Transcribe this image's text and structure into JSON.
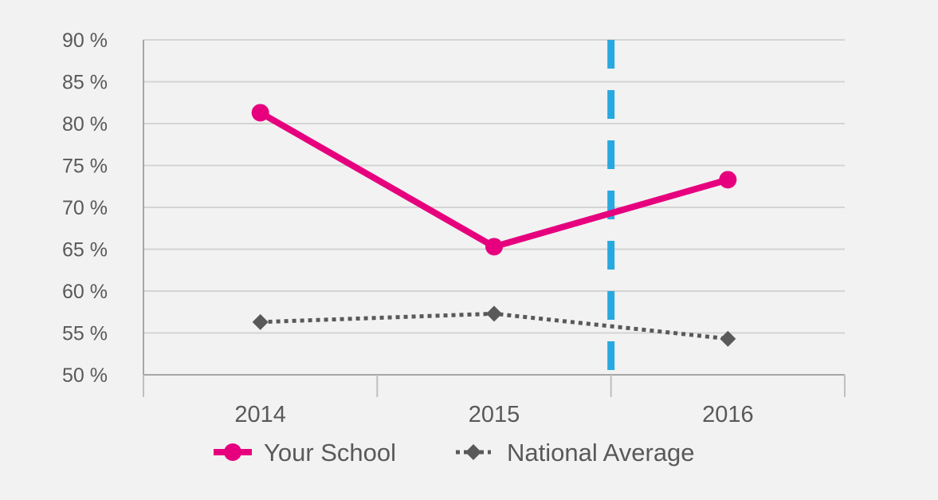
{
  "chart_data": {
    "type": "line",
    "categories": [
      "2014",
      "2015",
      "2016"
    ],
    "series": [
      {
        "name": "Your School",
        "values": [
          81.3,
          65.3,
          73.3
        ],
        "color": "#e6007e",
        "style": "solid",
        "marker": "circle"
      },
      {
        "name": "National Average",
        "values": [
          56.3,
          57.3,
          54.3
        ],
        "color": "#595959",
        "style": "dotted",
        "marker": "diamond"
      }
    ],
    "y_tick_labels": [
      "50 %",
      "55 %",
      "60 %",
      "65 %",
      "70 %",
      "75 %",
      "80 %",
      "85 %",
      "90 %"
    ],
    "ylim": [
      50,
      90
    ],
    "y_ticks": [
      50,
      55,
      60,
      65,
      70,
      75,
      80,
      85,
      90
    ],
    "grid": true,
    "reference_line": {
      "between": [
        "2015",
        "2016"
      ],
      "color": "#29a8e0",
      "style": "dashed"
    },
    "legend_placement": "bottom",
    "title": "",
    "xlabel": "",
    "ylabel": ""
  }
}
